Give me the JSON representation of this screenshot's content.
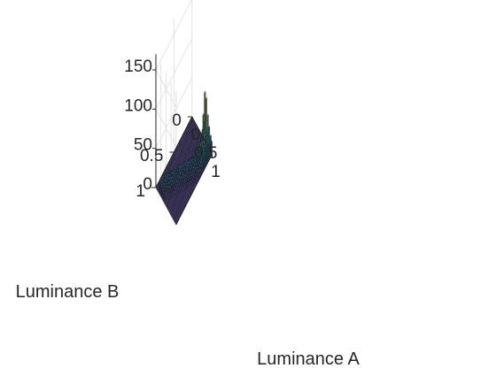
{
  "chart_data": {
    "type": "3d-bar-histogram",
    "xlabel": "Luminance A",
    "ylabel": "Luminance B",
    "zlabel": "",
    "xlim": [
      0,
      1
    ],
    "ylim": [
      0,
      1
    ],
    "zlim": [
      0,
      170
    ],
    "x_ticks": [
      "0",
      "0.5",
      "1"
    ],
    "y_ticks": [
      "0",
      "0.5",
      "1"
    ],
    "z_ticks": [
      "0",
      "50",
      "100",
      "150"
    ],
    "x_tick_values": [
      0,
      0.5,
      1
    ],
    "y_tick_values": [
      0,
      0.5,
      1
    ],
    "z_tick_values": [
      0,
      50,
      100,
      150
    ],
    "bins": 40,
    "colormap": "spectral (purple-blue-green-yellow-orange-red)",
    "peak": {
      "luminance_a": 0.82,
      "luminance_b": 0.96,
      "count": 150
    },
    "grid": true,
    "colors": {
      "floor": "#5e4fa2",
      "low": "#3288bd",
      "mid": "#abdda4",
      "high": "#fdae61",
      "peak": "#9e0142",
      "edge": "#1a1a1a",
      "gridline": "#e3e3e3"
    }
  }
}
